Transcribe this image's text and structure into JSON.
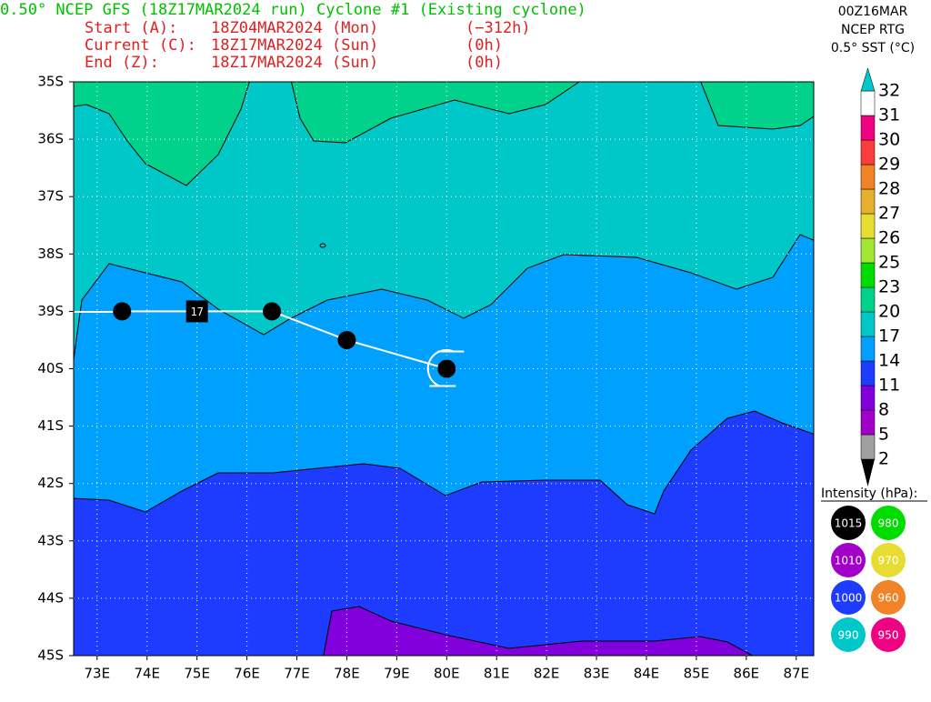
{
  "header": {
    "title": "0.50° NCEP GFS (18Z17MAR2024 run) Cyclone #1 (Existing cyclone)",
    "rows": [
      [
        "Start (A):",
        "18Z04MAR2024 (Mon)",
        "(−312h)"
      ],
      [
        "Current (C):",
        "18Z17MAR2024 (Sun)",
        "(0h)"
      ],
      [
        "End (Z):",
        "18Z17MAR2024 (Sun)",
        "(0h)"
      ]
    ],
    "right": [
      "00Z16MAR",
      "NCEP RTG",
      "0.5° SST (°C)"
    ]
  },
  "map": {
    "lonlim": [
      72.53,
      87.35
    ],
    "latlim": [
      35,
      45
    ],
    "lonticks": [
      {
        "value": 73,
        "label": "73E"
      },
      {
        "value": 74,
        "label": "74E"
      },
      {
        "value": 75,
        "label": "75E"
      },
      {
        "value": 76,
        "label": "76E"
      },
      {
        "value": 77,
        "label": "77E"
      },
      {
        "value": 78,
        "label": "78E"
      },
      {
        "value": 79,
        "label": "79E"
      },
      {
        "value": 80,
        "label": "80E"
      },
      {
        "value": 81,
        "label": "81E"
      },
      {
        "value": 82,
        "label": "82E"
      },
      {
        "value": 83,
        "label": "83E"
      },
      {
        "value": 84,
        "label": "84E"
      },
      {
        "value": 85,
        "label": "85E"
      },
      {
        "value": 86,
        "label": "86E"
      },
      {
        "value": 87,
        "label": "87E"
      }
    ],
    "latticks": [
      {
        "value": 35,
        "label": "35S"
      },
      {
        "value": 36,
        "label": "36S"
      },
      {
        "value": 37,
        "label": "37S"
      },
      {
        "value": 38,
        "label": "38S"
      },
      {
        "value": 39,
        "label": "39S"
      },
      {
        "value": 40,
        "label": "40S"
      },
      {
        "value": 41,
        "label": "41S"
      },
      {
        "value": 42,
        "label": "42S"
      },
      {
        "value": 43,
        "label": "43S"
      },
      {
        "value": 44,
        "label": "44S"
      },
      {
        "value": 45,
        "label": "45S"
      }
    ],
    "track": {
      "lon": [
        73.5,
        75,
        76.5,
        78,
        80
      ],
      "lat": [
        39,
        39,
        39,
        39.5,
        40
      ]
    },
    "marker_label": "17"
  },
  "colorbar": {
    "levels": [
      2,
      5,
      8,
      11,
      14,
      17,
      20,
      23,
      25,
      26,
      27,
      28,
      29,
      30,
      31,
      32
    ],
    "colors": [
      "#a0a0a0",
      "#a000c8",
      "#8200dc",
      "#1e3cff",
      "#00a0ff",
      "#00c8c8",
      "#00d28c",
      "#00dc00",
      "#a0e632",
      "#e6dc32",
      "#e6af2d",
      "#f08228",
      "#fa3c3c",
      "#f00082",
      "#ffffff"
    ],
    "under_color": "#000000",
    "over_color": "#00c8c8"
  },
  "intensity": {
    "title": "Intensity (hPa):",
    "items": [
      {
        "value": 1015,
        "color": "#000000"
      },
      {
        "value": 980,
        "color": "#00dc00"
      },
      {
        "value": 1010,
        "color": "#a000c8"
      },
      {
        "value": 970,
        "color": "#e6dc32"
      },
      {
        "value": 1000,
        "color": "#1e3cff"
      },
      {
        "value": 960,
        "color": "#f08228"
      },
      {
        "value": 990,
        "color": "#00c8c8"
      },
      {
        "value": 950,
        "color": "#f00082"
      }
    ]
  }
}
